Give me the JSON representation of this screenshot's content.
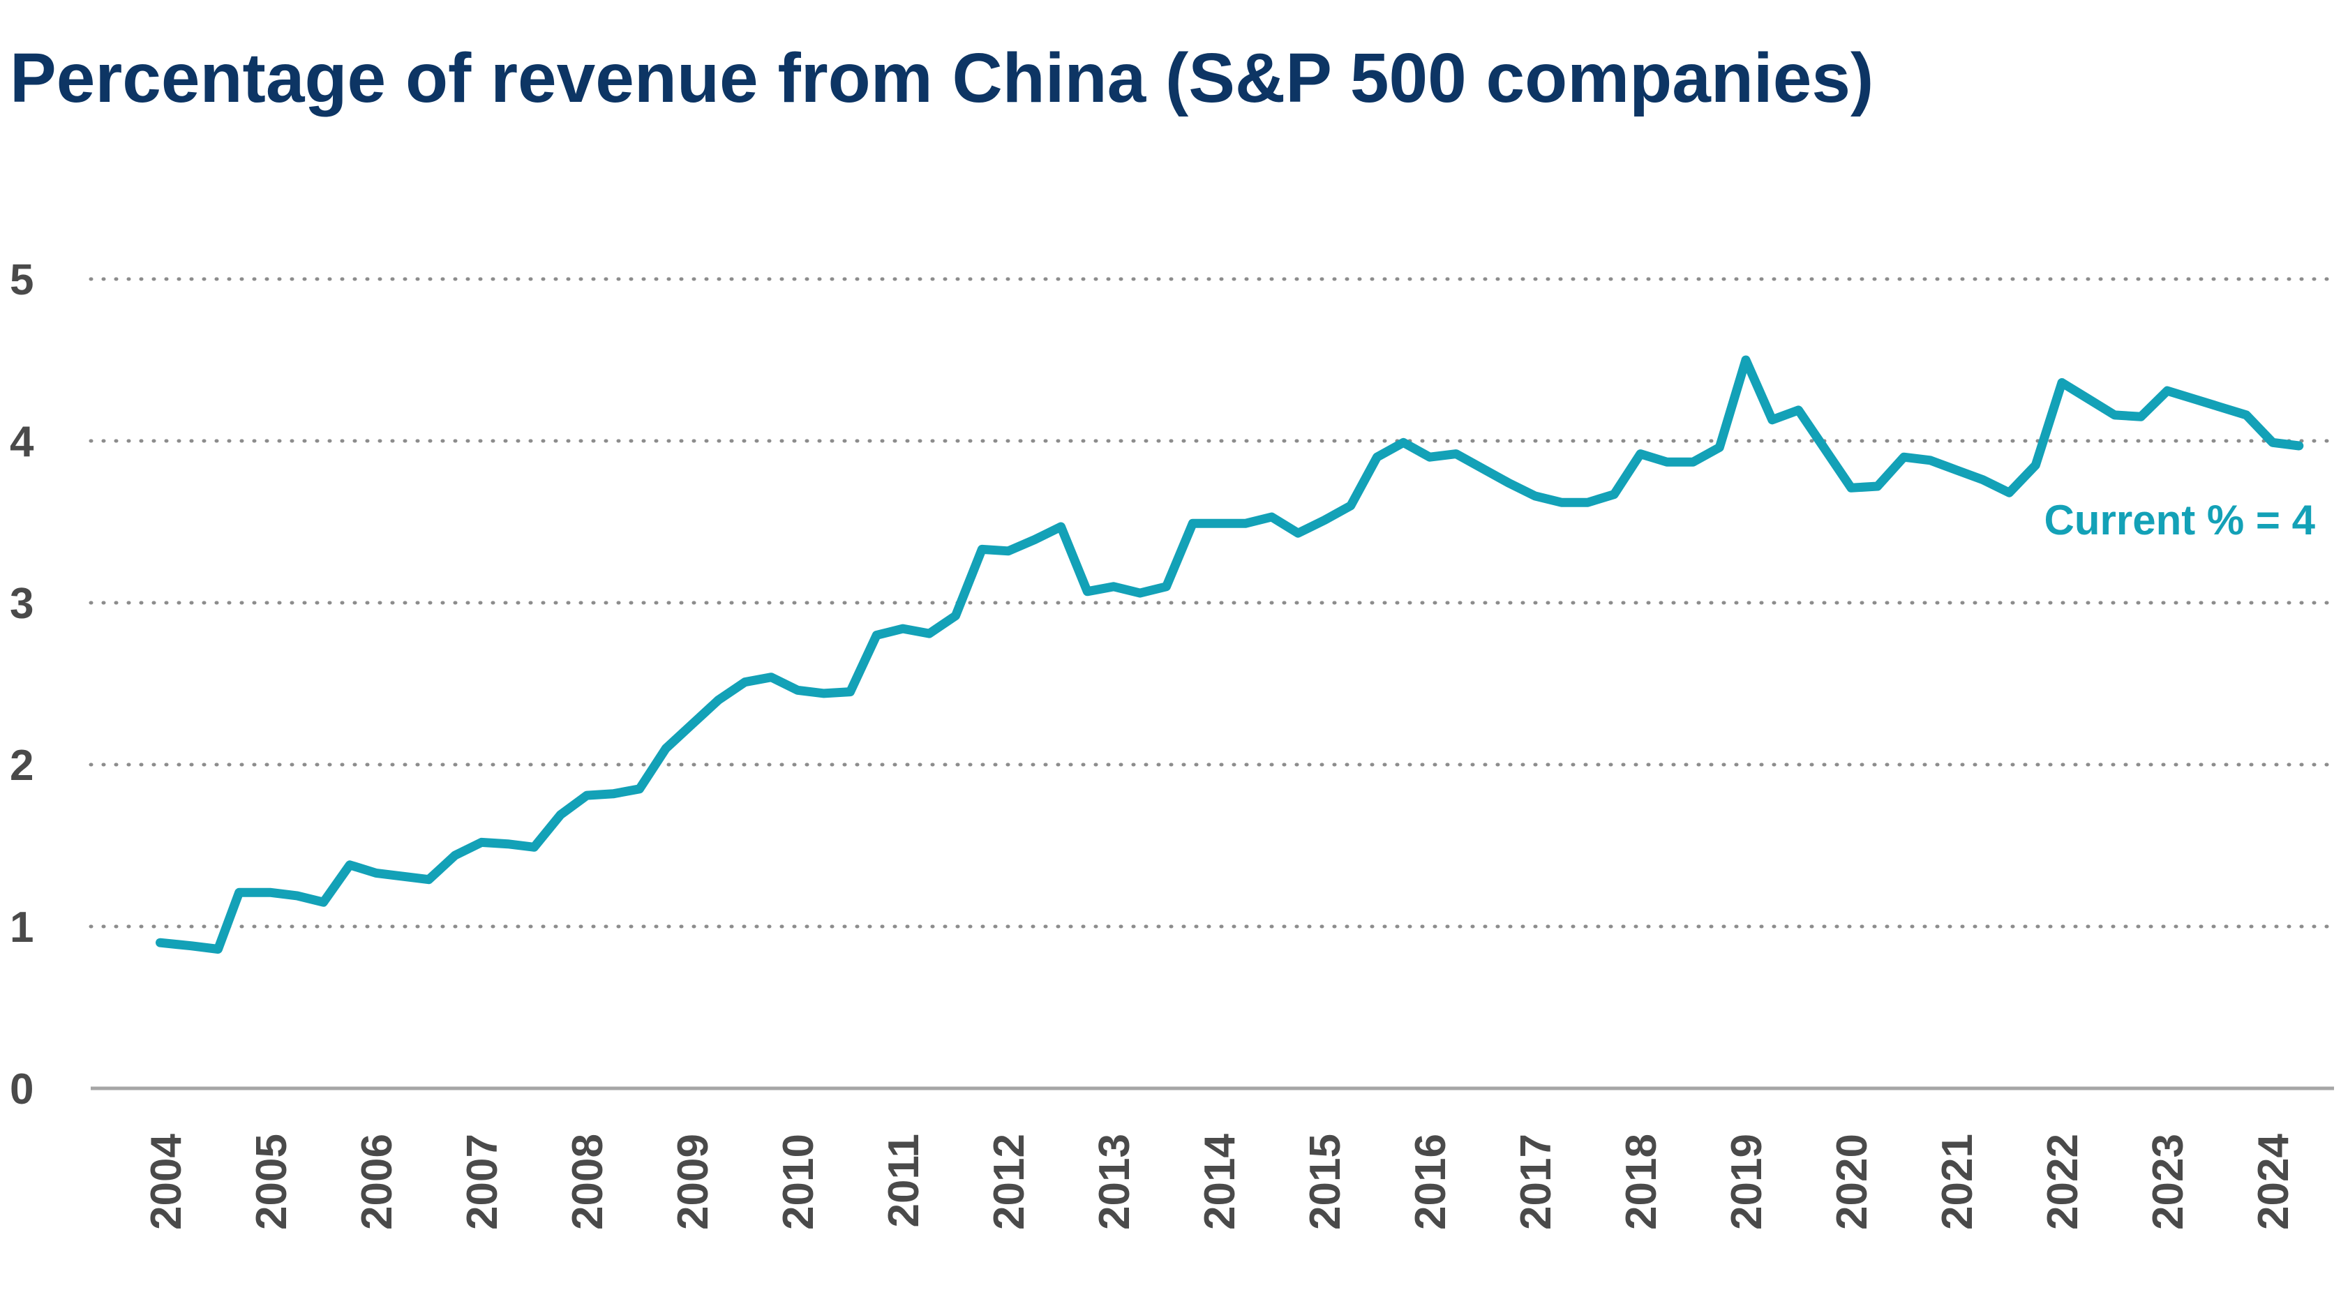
{
  "chart_data": {
    "type": "line",
    "title": "Percentage of revenue from China (S&P 500 companies)",
    "xlabel": "",
    "ylabel": "",
    "ylim": [
      0,
      5
    ],
    "yticks": [
      "0",
      "1",
      "2",
      "3",
      "4",
      "5"
    ],
    "xticks": [
      "2004",
      "2005",
      "2006",
      "2007",
      "2008",
      "2009",
      "2010",
      "2011",
      "2012",
      "2013",
      "2014",
      "2015",
      "2016",
      "2017",
      "2018",
      "2019",
      "2020",
      "2021",
      "2022",
      "2023",
      "2024"
    ],
    "grid": "horizontal-dotted",
    "line_color": "#13a1b7",
    "annotation": "Current % = 4",
    "series": [
      {
        "values": [
          [
            2003.95,
            0.9
          ],
          [
            2004.25,
            0.88
          ],
          [
            2004.5,
            0.86
          ],
          [
            2004.7,
            1.21
          ],
          [
            2005.0,
            1.21
          ],
          [
            2005.25,
            1.19
          ],
          [
            2005.5,
            1.15
          ],
          [
            2005.75,
            1.38
          ],
          [
            2006.0,
            1.33
          ],
          [
            2006.25,
            1.31
          ],
          [
            2006.5,
            1.29
          ],
          [
            2006.75,
            1.44
          ],
          [
            2007.0,
            1.52
          ],
          [
            2007.25,
            1.51
          ],
          [
            2007.5,
            1.49
          ],
          [
            2007.75,
            1.69
          ],
          [
            2008.0,
            1.81
          ],
          [
            2008.25,
            1.82
          ],
          [
            2008.5,
            1.85
          ],
          [
            2008.75,
            2.1
          ],
          [
            2009.0,
            2.25
          ],
          [
            2009.25,
            2.4
          ],
          [
            2009.5,
            2.51
          ],
          [
            2009.75,
            2.54
          ],
          [
            2010.0,
            2.46
          ],
          [
            2010.25,
            2.44
          ],
          [
            2010.5,
            2.45
          ],
          [
            2010.75,
            2.8
          ],
          [
            2011.0,
            2.84
          ],
          [
            2011.25,
            2.81
          ],
          [
            2011.5,
            2.92
          ],
          [
            2011.75,
            3.33
          ],
          [
            2012.0,
            3.32
          ],
          [
            2012.25,
            3.39
          ],
          [
            2012.5,
            3.47
          ],
          [
            2012.75,
            3.07
          ],
          [
            2013.0,
            3.1
          ],
          [
            2013.25,
            3.06
          ],
          [
            2013.5,
            3.1
          ],
          [
            2013.75,
            3.49
          ],
          [
            2014.0,
            3.49
          ],
          [
            2014.25,
            3.49
          ],
          [
            2014.5,
            3.53
          ],
          [
            2014.75,
            3.43
          ],
          [
            2015.0,
            3.51
          ],
          [
            2015.25,
            3.6
          ],
          [
            2015.5,
            3.9
          ],
          [
            2015.75,
            3.99
          ],
          [
            2016.0,
            3.9
          ],
          [
            2016.25,
            3.92
          ],
          [
            2016.5,
            3.83
          ],
          [
            2016.75,
            3.74
          ],
          [
            2017.0,
            3.66
          ],
          [
            2017.25,
            3.62
          ],
          [
            2017.5,
            3.62
          ],
          [
            2017.75,
            3.67
          ],
          [
            2018.0,
            3.92
          ],
          [
            2018.25,
            3.87
          ],
          [
            2018.5,
            3.87
          ],
          [
            2018.75,
            3.96
          ],
          [
            2019.0,
            4.5
          ],
          [
            2019.25,
            4.13
          ],
          [
            2019.5,
            4.19
          ],
          [
            2019.75,
            3.95
          ],
          [
            2020.0,
            3.71
          ],
          [
            2020.25,
            3.72
          ],
          [
            2020.5,
            3.9
          ],
          [
            2020.75,
            3.88
          ],
          [
            2021.0,
            3.82
          ],
          [
            2021.25,
            3.76
          ],
          [
            2021.5,
            3.68
          ],
          [
            2021.75,
            3.85
          ],
          [
            2022.0,
            4.36
          ],
          [
            2022.25,
            4.26
          ],
          [
            2022.5,
            4.16
          ],
          [
            2022.75,
            4.15
          ],
          [
            2023.0,
            4.31
          ],
          [
            2023.25,
            4.26
          ],
          [
            2023.5,
            4.21
          ],
          [
            2023.75,
            4.16
          ],
          [
            2024.0,
            3.99
          ],
          [
            2024.25,
            3.97
          ]
        ]
      }
    ]
  }
}
